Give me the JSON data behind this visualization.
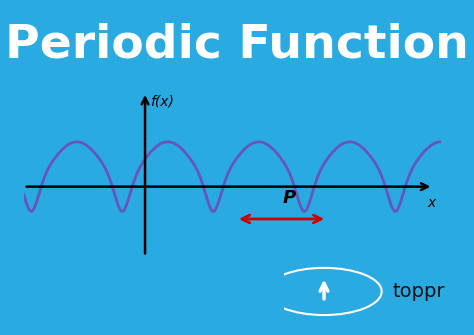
{
  "background_color": "#29ABE2",
  "title": "Periodic Function",
  "title_color": "#FFFFFF",
  "title_fontsize": 34,
  "title_fontweight": "bold",
  "curve_color": "#6655BB",
  "curve_linewidth": 2.0,
  "axis_color": "#000000",
  "arrow_color": "#CC0000",
  "period_label": "P",
  "period_label_color": "#000000",
  "fx_label": "f(x)",
  "x_label": "x",
  "toppr_bg": "#FFFFFF",
  "toppr_icon_bg": "#29ABE2",
  "toppr_text_color": "#111111",
  "fig_width": 4.74,
  "fig_height": 3.35,
  "fig_dpi": 100
}
